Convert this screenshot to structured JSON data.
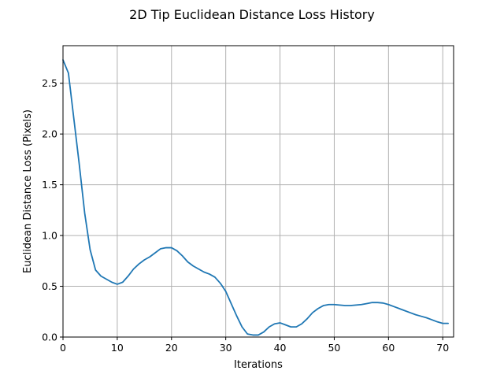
{
  "chart_data": {
    "type": "line",
    "title": "2D Tip Euclidean Distance Loss History",
    "xlabel": "Iterations",
    "ylabel": "Euclidean Distance Loss (Pixels)",
    "xlim": [
      0,
      72
    ],
    "ylim": [
      0,
      2.87
    ],
    "xticks": [
      0,
      10,
      20,
      30,
      40,
      50,
      60,
      70
    ],
    "xtick_labels": [
      "0",
      "10",
      "20",
      "30",
      "40",
      "50",
      "60",
      "70"
    ],
    "yticks": [
      0,
      0.5,
      1.0,
      1.5,
      2.0,
      2.5
    ],
    "ytick_labels": [
      "0.0",
      "0.5",
      "1.0",
      "1.5",
      "2.0",
      "2.5"
    ],
    "grid": true,
    "series": [
      {
        "color": "#1f77b4",
        "x": [
          0,
          1,
          2,
          3,
          4,
          5,
          6,
          7,
          8,
          9,
          10,
          11,
          12,
          13,
          14,
          15,
          16,
          17,
          18,
          19,
          20,
          21,
          22,
          23,
          24,
          25,
          26,
          27,
          28,
          29,
          30,
          31,
          32,
          33,
          34,
          35,
          36,
          37,
          38,
          39,
          40,
          41,
          42,
          43,
          44,
          45,
          46,
          47,
          48,
          49,
          50,
          51,
          52,
          53,
          54,
          55,
          56,
          57,
          58,
          59,
          60,
          61,
          62,
          63,
          64,
          65,
          66,
          67,
          68,
          69,
          70,
          71
        ],
        "y": [
          2.73,
          2.6,
          2.15,
          1.7,
          1.22,
          0.86,
          0.66,
          0.6,
          0.57,
          0.54,
          0.52,
          0.54,
          0.6,
          0.67,
          0.72,
          0.76,
          0.79,
          0.83,
          0.87,
          0.88,
          0.88,
          0.85,
          0.8,
          0.74,
          0.7,
          0.67,
          0.64,
          0.62,
          0.59,
          0.53,
          0.45,
          0.33,
          0.21,
          0.1,
          0.03,
          0.02,
          0.02,
          0.05,
          0.1,
          0.13,
          0.14,
          0.12,
          0.1,
          0.1,
          0.13,
          0.18,
          0.24,
          0.28,
          0.31,
          0.32,
          0.32,
          0.315,
          0.31,
          0.31,
          0.315,
          0.32,
          0.33,
          0.34,
          0.34,
          0.335,
          0.32,
          0.3,
          0.28,
          0.26,
          0.24,
          0.22,
          0.205,
          0.19,
          0.17,
          0.15,
          0.135,
          0.135
        ]
      }
    ]
  }
}
